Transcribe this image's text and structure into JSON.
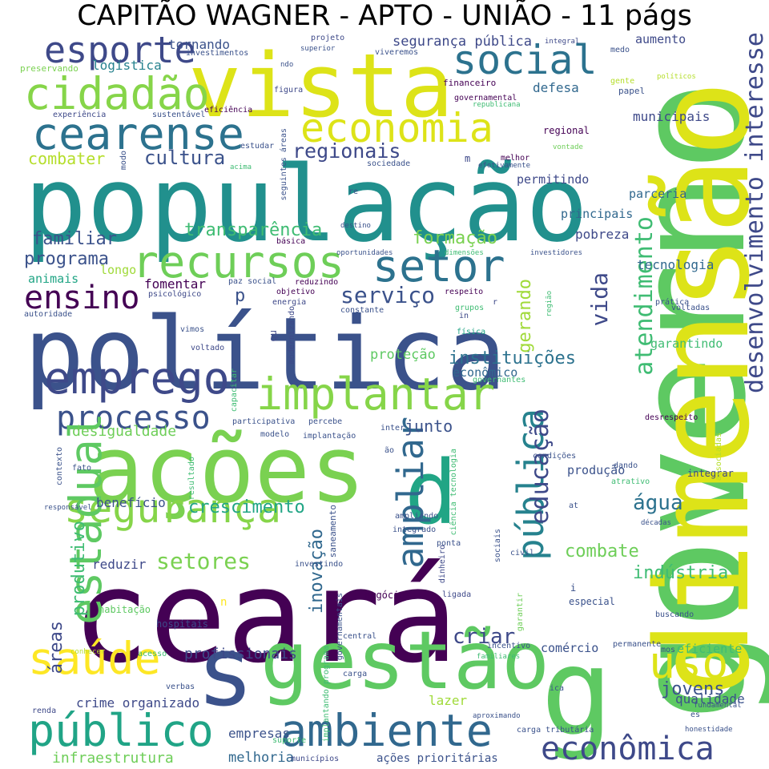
{
  "title": "CAPITÃO WAGNER - APTO - UNIÃO - 11 págs",
  "words": [
    {
      "t": "população",
      "c": "#21908d"
    },
    {
      "t": "política",
      "c": "#3b528b"
    },
    {
      "t": "ceará",
      "c": "#440154"
    },
    {
      "t": "ações",
      "c": "#7ad151"
    },
    {
      "t": "vista",
      "c": "#dde318"
    },
    {
      "t": "gestão",
      "c": "#5ec962"
    },
    {
      "t": "s",
      "c": "#3b528b"
    },
    {
      "t": "governo",
      "c": "#5ec962"
    },
    {
      "t": "dimensão",
      "c": "#dde318"
    },
    {
      "t": "d",
      "c": "#21a585"
    },
    {
      "t": "g",
      "c": "#5ec962"
    },
    {
      "t": "cearense",
      "c": "#2c728e"
    },
    {
      "t": "cidadão",
      "c": "#86d549"
    },
    {
      "t": "esporte",
      "c": "#3e4989"
    },
    {
      "t": "social",
      "c": "#2c728e"
    },
    {
      "t": "economia",
      "c": "#dde318"
    },
    {
      "t": "recursos",
      "c": "#6ece58"
    },
    {
      "t": "setor",
      "c": "#2c728e"
    },
    {
      "t": "emprego",
      "c": "#3e4989"
    },
    {
      "t": "implantar",
      "c": "#86d549"
    },
    {
      "t": "ensino",
      "c": "#440154"
    },
    {
      "t": "processo",
      "c": "#3b528b"
    },
    {
      "t": "segurança",
      "c": "#86d549"
    },
    {
      "t": "estadual",
      "c": "#5ec962"
    },
    {
      "t": "ampliar",
      "c": "#31688e"
    },
    {
      "t": "pública",
      "c": "#26828e"
    },
    {
      "t": "educação",
      "c": "#3e4989"
    },
    {
      "t": "atendimento",
      "c": "#3fbc73"
    },
    {
      "t": "desenvolvimento",
      "c": "#3e4989"
    },
    {
      "t": "interesse",
      "c": "#3e4989"
    },
    {
      "t": "saúde",
      "c": "#fde725"
    },
    {
      "t": "público",
      "c": "#20a486"
    },
    {
      "t": "ambiente",
      "c": "#31688e"
    },
    {
      "t": "uso",
      "c": "#dde318"
    },
    {
      "t": "econômica",
      "c": "#3e4989"
    },
    {
      "t": "serviço",
      "c": "#3b528b"
    },
    {
      "t": "regionais",
      "c": "#3e4989"
    },
    {
      "t": "cultura",
      "c": "#3b528b"
    },
    {
      "t": "combater",
      "c": "#b5de2b"
    },
    {
      "t": "transparência",
      "c": "#3fbc73"
    },
    {
      "t": "formação",
      "c": "#7ad151"
    },
    {
      "t": "familiar",
      "c": "#3b528b"
    },
    {
      "t": "programa",
      "c": "#3b528b"
    },
    {
      "t": "instituições",
      "c": "#2c728e"
    },
    {
      "t": "crescimento",
      "c": "#21a585"
    },
    {
      "t": "água",
      "c": "#2c728e"
    },
    {
      "t": "setores",
      "c": "#7ad151"
    },
    {
      "t": "combate",
      "c": "#6ece58"
    },
    {
      "t": "indústria",
      "c": "#3fbc73"
    },
    {
      "t": "criar",
      "c": "#3e4989"
    },
    {
      "t": "jovens",
      "c": "#3b528b"
    },
    {
      "t": "profissionais",
      "c": "#3e4989"
    },
    {
      "t": "empresas",
      "c": "#3b528b"
    },
    {
      "t": "infraestrutura",
      "c": "#6ece58"
    },
    {
      "t": "melhoria",
      "c": "#31688e"
    },
    {
      "t": "ações prioritárias",
      "c": "#3b528b"
    },
    {
      "t": "vida",
      "c": "#3e4989"
    },
    {
      "t": "gerando",
      "c": "#a0da39"
    },
    {
      "t": "tecnologia",
      "c": "#31688e"
    },
    {
      "t": "pobreza",
      "c": "#3e4989"
    },
    {
      "t": "principais",
      "c": "#31688e"
    },
    {
      "t": "parceria",
      "c": "#31688e"
    },
    {
      "t": "permitindo",
      "c": "#3e4989"
    },
    {
      "t": "segurança pública",
      "c": "#3e4989"
    },
    {
      "t": "tornando",
      "c": "#3b528b"
    },
    {
      "t": "logística",
      "c": "#26828e"
    },
    {
      "t": "municipais",
      "c": "#3e4989"
    },
    {
      "t": "defesa",
      "c": "#31688e"
    },
    {
      "t": "aumento",
      "c": "#3e4989"
    },
    {
      "t": "garantindo",
      "c": "#3fbc73"
    },
    {
      "t": "inovação",
      "c": "#31688e"
    },
    {
      "t": "produtivo",
      "c": "#3fbc73"
    },
    {
      "t": "áreas",
      "c": "#3e4989"
    },
    {
      "t": "desigualdade",
      "c": "#6ece58"
    },
    {
      "t": "junto",
      "c": "#3b528b"
    },
    {
      "t": "benefício",
      "c": "#3b528b"
    },
    {
      "t": "reduzir",
      "c": "#3e4989"
    },
    {
      "t": "fomentar",
      "c": "#440154"
    },
    {
      "t": "longo",
      "c": "#a0da39"
    },
    {
      "t": "animais",
      "c": "#21a585"
    },
    {
      "t": "p",
      "c": "#3b528b"
    },
    {
      "t": "proteção",
      "c": "#5ec962"
    },
    {
      "t": "econômico",
      "c": "#31688e"
    },
    {
      "t": "produção",
      "c": "#3b528b"
    },
    {
      "t": "comércio",
      "c": "#3b528b"
    },
    {
      "t": "eficiente",
      "c": "#3fbc73"
    },
    {
      "t": "qualidade",
      "c": "#3b528b"
    },
    {
      "t": "crime organizado",
      "c": "#3e4989"
    },
    {
      "t": "lazer",
      "c": "#a0da39"
    },
    {
      "t": "integrar",
      "c": "#3e4989"
    },
    {
      "t": "habitação",
      "c": "#5ec962"
    },
    {
      "t": "hospitais",
      "c": "#3e4989"
    },
    {
      "t": "especial",
      "c": "#3b528b"
    },
    {
      "t": "negócios",
      "c": "#440154"
    },
    {
      "t": "regional",
      "c": "#440154"
    },
    {
      "t": "financeiro",
      "c": "#440154"
    },
    {
      "t": "governamental",
      "c": "#440154"
    },
    {
      "t": "papel",
      "c": "#3b528b"
    },
    {
      "t": "medo",
      "c": "#3b528b"
    },
    {
      "t": "melhor",
      "c": "#440154"
    },
    {
      "t": "sociedade",
      "c": "#3b528b"
    },
    {
      "t": "modo",
      "c": "#3b528b"
    },
    {
      "t": "eficiência",
      "c": "#440154"
    },
    {
      "t": "sustentável",
      "c": "#3b528b"
    },
    {
      "t": "experiência",
      "c": "#3e4989"
    },
    {
      "t": "preservando",
      "c": "#7ad151"
    },
    {
      "t": "investimentos",
      "c": "#3b528b"
    },
    {
      "t": "superior",
      "c": "#3b528b"
    },
    {
      "t": "projeto",
      "c": "#3e4989"
    },
    {
      "t": "viveremos",
      "c": "#3b528b"
    },
    {
      "t": "integral",
      "c": "#3e4989"
    },
    {
      "t": "figura",
      "c": "#3e4989"
    },
    {
      "t": "ndo",
      "c": "#3b528b"
    },
    {
      "t": "republicana",
      "c": "#3fbc73"
    },
    {
      "t": "gente",
      "c": "#b5de2b"
    },
    {
      "t": "políticos",
      "c": "#b5de2b"
    },
    {
      "t": "vontade",
      "c": "#6ece58"
    },
    {
      "t": "efetivamente",
      "c": "#3b528b"
    },
    {
      "t": "investidores",
      "c": "#3b528b"
    },
    {
      "t": "estudar",
      "c": "#3b528b"
    },
    {
      "t": "acima",
      "c": "#3fbc73"
    },
    {
      "t": "seguintes áreas",
      "c": "#3b528b"
    },
    {
      "t": "re",
      "c": "#3b528b"
    },
    {
      "t": "m",
      "c": "#3e4989"
    },
    {
      "t": "básica",
      "c": "#440154"
    },
    {
      "t": "destino",
      "c": "#3b528b"
    },
    {
      "t": "dimensões",
      "c": "#3fbc73"
    },
    {
      "t": "oportunidades",
      "c": "#3b528b"
    },
    {
      "t": "paz social",
      "c": "#3b528b"
    },
    {
      "t": "reduzindo",
      "c": "#440154"
    },
    {
      "t": "objetivo",
      "c": "#440154"
    },
    {
      "t": "energia",
      "c": "#3e4989"
    },
    {
      "t": "constante",
      "c": "#3b528b"
    },
    {
      "t": "respeito",
      "c": "#440154"
    },
    {
      "t": "grupos",
      "c": "#3fbc73"
    },
    {
      "t": "in",
      "c": "#3e4989"
    },
    {
      "t": "r",
      "c": "#3e4989"
    },
    {
      "t": "física",
      "c": "#21a585"
    },
    {
      "t": "psicológico",
      "c": "#3e4989"
    },
    {
      "t": "autoridade",
      "c": "#3b528b"
    },
    {
      "t": "vimos",
      "c": "#3b528b"
    },
    {
      "t": "voltado",
      "c": "#3e4989"
    },
    {
      "t": "qu",
      "c": "#3e4989"
    },
    {
      "t": "modernizando",
      "c": "#3e4989"
    },
    {
      "t": "capacitar",
      "c": "#3fbc73"
    },
    {
      "t": "participativa",
      "c": "#3b528b"
    },
    {
      "t": "percebe",
      "c": "#3b528b"
    },
    {
      "t": "governantes",
      "c": "#3fbc73"
    },
    {
      "t": "modelo",
      "c": "#3b528b"
    },
    {
      "t": "implantação",
      "c": "#3b528b"
    },
    {
      "t": "inter",
      "c": "#3b528b"
    },
    {
      "t": "ão",
      "c": "#3b528b"
    },
    {
      "t": "contexto",
      "c": "#3b528b"
    },
    {
      "t": "fato",
      "c": "#3b528b"
    },
    {
      "t": "resultado",
      "c": "#3fbc73"
    },
    {
      "t": "responsável",
      "c": "#3b528b"
    },
    {
      "t": "ciência tecnologia",
      "c": "#3fbc73"
    },
    {
      "t": "ampliando",
      "c": "#3b528b"
    },
    {
      "t": "integrado",
      "c": "#3b528b"
    },
    {
      "t": "saneamento",
      "c": "#3b528b"
    },
    {
      "t": "ponta",
      "c": "#3b528b"
    },
    {
      "t": "investindo",
      "c": "#3b528b"
    },
    {
      "t": "dinheiro",
      "c": "#3e4989"
    },
    {
      "t": "ligada",
      "c": "#3e4989"
    },
    {
      "t": "sociais",
      "c": "#3b528b"
    },
    {
      "t": "civil",
      "c": "#3b528b"
    },
    {
      "t": "região",
      "c": "#3fbc73"
    },
    {
      "t": "prática",
      "c": "#3b528b"
    },
    {
      "t": "voltadas",
      "c": "#3b528b"
    },
    {
      "t": "desrespeito",
      "c": "#440154"
    },
    {
      "t": "condições",
      "c": "#3b528b"
    },
    {
      "t": "dando",
      "c": "#3b528b"
    },
    {
      "t": "atrativo",
      "c": "#3fbc73"
    },
    {
      "t": "at",
      "c": "#3b528b"
    },
    {
      "t": "décadas",
      "c": "#3b528b"
    },
    {
      "t": "associadas",
      "c": "#b5de2b"
    },
    {
      "t": "i",
      "c": "#3b528b"
    },
    {
      "t": "garantir",
      "c": "#6ece58"
    },
    {
      "t": "buscando",
      "c": "#3b528b"
    },
    {
      "t": "incentivo",
      "c": "#3b528b"
    },
    {
      "t": "permanente",
      "c": "#3b528b"
    },
    {
      "t": "mos",
      "c": "#3b528b"
    },
    {
      "t": "fundamental",
      "c": "#3b528b"
    },
    {
      "t": "es",
      "c": "#3b528b"
    },
    {
      "t": "honestidade",
      "c": "#3b528b"
    },
    {
      "t": "ica",
      "c": "#3b528b"
    },
    {
      "t": "carga tributária",
      "c": "#3b528b"
    },
    {
      "t": "aproximando",
      "c": "#3b528b"
    },
    {
      "t": "familiares",
      "c": "#3fbc73"
    },
    {
      "t": "carga",
      "c": "#3b528b"
    },
    {
      "t": "central",
      "c": "#3b528b"
    },
    {
      "t": "implantando programa",
      "c": "#3fbc73"
    },
    {
      "t": "suporte",
      "c": "#3fbc73"
    },
    {
      "t": "municípios",
      "c": "#3e4989"
    },
    {
      "t": "acesso",
      "c": "#3fbc73"
    },
    {
      "t": "conhecer",
      "c": "#b5de2b"
    },
    {
      "t": "verbas",
      "c": "#3b528b"
    },
    {
      "t": "renda",
      "c": "#3e4989"
    },
    {
      "t": "governamentais",
      "c": "#3b528b"
    },
    {
      "t": "n",
      "c": "#fde725"
    }
  ]
}
